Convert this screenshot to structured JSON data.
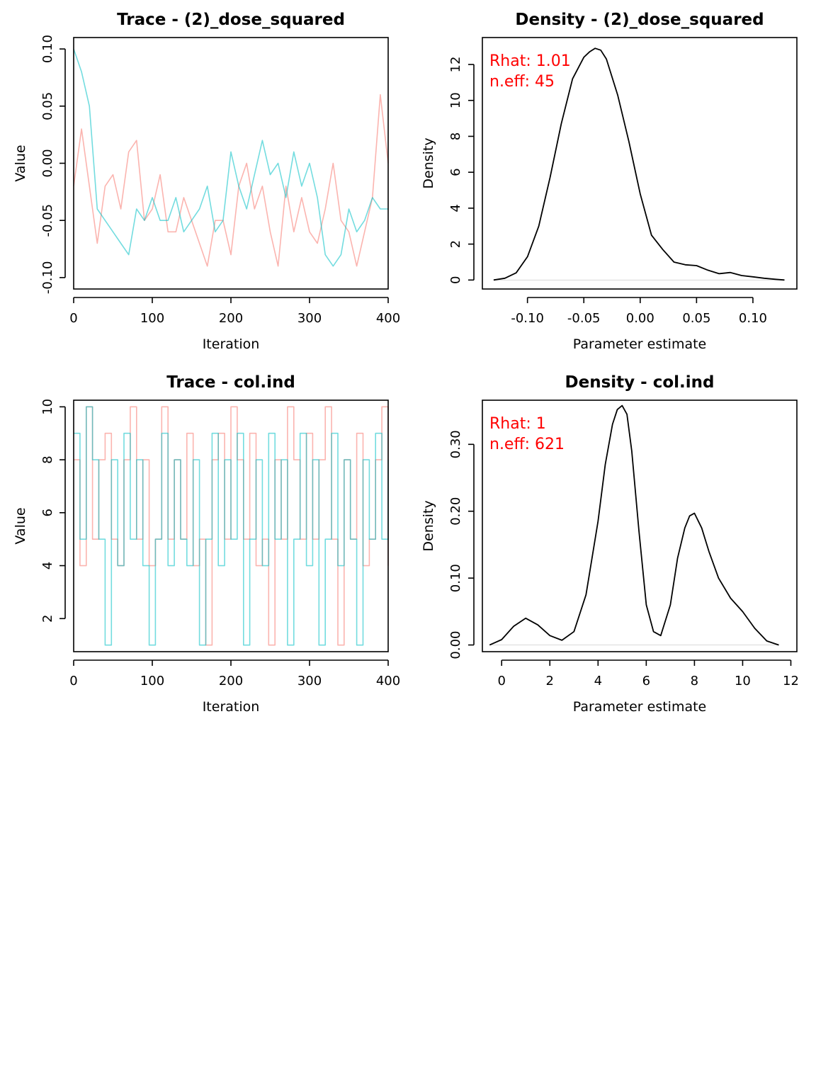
{
  "chart_data": [
    {
      "type": "line",
      "title": "Trace - (2)_dose_squared",
      "xlabel": "Iteration",
      "ylabel": "Value",
      "xlim": [
        0,
        400
      ],
      "ylim": [
        -0.11,
        0.11
      ],
      "xticks": [
        "0",
        "100",
        "200",
        "300",
        "400"
      ],
      "yticks": [
        "-0.10",
        "-0.05",
        "0.00",
        "0.05",
        "0.10"
      ],
      "series": [
        {
          "color": "#f8766d",
          "x": [
            0,
            10,
            20,
            30,
            40,
            50,
            60,
            70,
            80,
            90,
            100,
            110,
            120,
            130,
            140,
            150,
            160,
            170,
            180,
            190,
            200,
            210,
            220,
            230,
            240,
            250,
            260,
            270,
            280,
            290,
            300,
            310,
            320,
            330,
            340,
            350,
            360,
            370,
            380,
            390,
            400
          ],
          "values": [
            -0.02,
            0.03,
            -0.02,
            -0.07,
            -0.02,
            -0.01,
            -0.04,
            0.01,
            0.02,
            -0.05,
            -0.04,
            -0.01,
            -0.06,
            -0.06,
            -0.03,
            -0.05,
            -0.07,
            -0.09,
            -0.05,
            -0.05,
            -0.08,
            -0.02,
            0.0,
            -0.04,
            -0.02,
            -0.06,
            -0.09,
            -0.02,
            -0.06,
            -0.03,
            -0.06,
            -0.07,
            -0.04,
            0.0,
            -0.05,
            -0.06,
            -0.09,
            -0.06,
            -0.03,
            0.06,
            0.0
          ]
        },
        {
          "color": "#00bfc4",
          "x": [
            0,
            10,
            20,
            30,
            40,
            50,
            60,
            70,
            80,
            90,
            100,
            110,
            120,
            130,
            140,
            150,
            160,
            170,
            180,
            190,
            200,
            210,
            220,
            230,
            240,
            250,
            260,
            270,
            280,
            290,
            300,
            310,
            320,
            330,
            340,
            350,
            360,
            370,
            380,
            390,
            400
          ],
          "values": [
            0.1,
            0.08,
            0.05,
            -0.04,
            -0.05,
            -0.06,
            -0.07,
            -0.08,
            -0.04,
            -0.05,
            -0.03,
            -0.05,
            -0.05,
            -0.03,
            -0.06,
            -0.05,
            -0.04,
            -0.02,
            -0.06,
            -0.05,
            0.01,
            -0.02,
            -0.04,
            -0.01,
            0.02,
            -0.01,
            0.0,
            -0.03,
            0.01,
            -0.02,
            0.0,
            -0.03,
            -0.08,
            -0.09,
            -0.08,
            -0.04,
            -0.06,
            -0.05,
            -0.03,
            -0.04,
            -0.04
          ]
        }
      ]
    },
    {
      "type": "line",
      "title": "Density - (2)_dose_squared",
      "xlabel": "Parameter estimate",
      "ylabel": "Density",
      "xlim": [
        -0.14,
        0.139
      ],
      "ylim": [
        -0.5,
        13.5
      ],
      "xticks": [
        "-0.10",
        "-0.05",
        "0.00",
        "0.05",
        "0.10"
      ],
      "yticks": [
        "0",
        "2",
        "4",
        "6",
        "8",
        "10",
        "12"
      ],
      "annotations": [
        "Rhat: 1.01",
        "n.eff: 45"
      ],
      "series": [
        {
          "color": "#000000",
          "x": [
            -0.13,
            -0.12,
            -0.11,
            -0.1,
            -0.09,
            -0.08,
            -0.07,
            -0.06,
            -0.05,
            -0.045,
            -0.04,
            -0.035,
            -0.03,
            -0.02,
            -0.01,
            0.0,
            0.01,
            0.02,
            0.03,
            0.04,
            0.05,
            0.06,
            0.07,
            0.08,
            0.09,
            0.1,
            0.11,
            0.12,
            0.128
          ],
          "values": [
            0.0,
            0.1,
            0.4,
            1.3,
            3.0,
            5.7,
            8.7,
            11.2,
            12.4,
            12.7,
            12.9,
            12.8,
            12.3,
            10.3,
            7.7,
            4.8,
            2.5,
            1.7,
            1.0,
            0.85,
            0.8,
            0.55,
            0.35,
            0.42,
            0.25,
            0.18,
            0.1,
            0.04,
            0.0
          ]
        }
      ]
    },
    {
      "type": "line",
      "title": "Trace - col.ind",
      "xlabel": "Iteration",
      "ylabel": "Value",
      "xlim": [
        0,
        400
      ],
      "ylim": [
        0.75,
        10.25
      ],
      "xticks": [
        "0",
        "100",
        "200",
        "300",
        "400"
      ],
      "yticks": [
        "2",
        "4",
        "6",
        "8",
        "10"
      ],
      "series": [
        {
          "color": "#f8766d",
          "x": [
            0,
            8,
            16,
            24,
            32,
            40,
            48,
            56,
            64,
            72,
            80,
            88,
            96,
            104,
            112,
            120,
            128,
            136,
            144,
            152,
            160,
            168,
            176,
            184,
            192,
            200,
            208,
            216,
            224,
            232,
            240,
            248,
            256,
            264,
            272,
            280,
            288,
            296,
            304,
            312,
            320,
            328,
            336,
            344,
            352,
            360,
            368,
            376,
            384,
            392,
            400
          ],
          "values": [
            8,
            4,
            10,
            5,
            8,
            9,
            5,
            4,
            8,
            10,
            5,
            8,
            4,
            5,
            10,
            5,
            8,
            5,
            9,
            4,
            5,
            1,
            8,
            9,
            5,
            10,
            8,
            5,
            9,
            4,
            5,
            1,
            8,
            5,
            10,
            8,
            5,
            9,
            5,
            8,
            10,
            5,
            1,
            8,
            5,
            9,
            4,
            5,
            8,
            10,
            4
          ]
        },
        {
          "color": "#00bfc4",
          "x": [
            0,
            8,
            16,
            24,
            32,
            40,
            48,
            56,
            64,
            72,
            80,
            88,
            96,
            104,
            112,
            120,
            128,
            136,
            144,
            152,
            160,
            168,
            176,
            184,
            192,
            200,
            208,
            216,
            224,
            232,
            240,
            248,
            256,
            264,
            272,
            280,
            288,
            296,
            304,
            312,
            320,
            328,
            336,
            344,
            352,
            360,
            368,
            376,
            384,
            392,
            400
          ],
          "values": [
            9,
            5,
            10,
            8,
            5,
            1,
            8,
            4,
            9,
            5,
            8,
            4,
            1,
            5,
            9,
            4,
            8,
            5,
            4,
            8,
            1,
            5,
            9,
            4,
            8,
            5,
            9,
            1,
            5,
            8,
            4,
            9,
            5,
            8,
            1,
            5,
            9,
            4,
            8,
            1,
            5,
            9,
            4,
            8,
            5,
            1,
            8,
            5,
            9,
            5,
            8
          ]
        }
      ]
    },
    {
      "type": "line",
      "title": "Density - col.ind",
      "xlabel": "Parameter estimate",
      "ylabel": "Density",
      "xlim": [
        -0.8,
        12.25
      ],
      "ylim": [
        -0.01,
        0.366
      ],
      "xticks": [
        "0",
        "2",
        "4",
        "6",
        "8",
        "10",
        "12"
      ],
      "yticks": [
        "0.00",
        "0.10",
        "0.20",
        "0.30"
      ],
      "annotations": [
        "Rhat: 1",
        "n.eff: 621"
      ],
      "series": [
        {
          "color": "#000000",
          "x": [
            -0.5,
            0.0,
            0.5,
            1.0,
            1.5,
            2.0,
            2.5,
            3.0,
            3.5,
            4.0,
            4.3,
            4.6,
            4.8,
            5.0,
            5.2,
            5.4,
            5.7,
            6.0,
            6.3,
            6.6,
            7.0,
            7.3,
            7.6,
            7.8,
            8.0,
            8.3,
            8.6,
            9.0,
            9.5,
            10.0,
            10.5,
            11.0,
            11.5
          ],
          "values": [
            0.0,
            0.008,
            0.028,
            0.04,
            0.03,
            0.014,
            0.007,
            0.02,
            0.075,
            0.185,
            0.27,
            0.33,
            0.352,
            0.358,
            0.345,
            0.29,
            0.17,
            0.06,
            0.02,
            0.014,
            0.06,
            0.13,
            0.175,
            0.193,
            0.197,
            0.175,
            0.14,
            0.1,
            0.07,
            0.05,
            0.025,
            0.006,
            0.0
          ]
        }
      ]
    }
  ]
}
